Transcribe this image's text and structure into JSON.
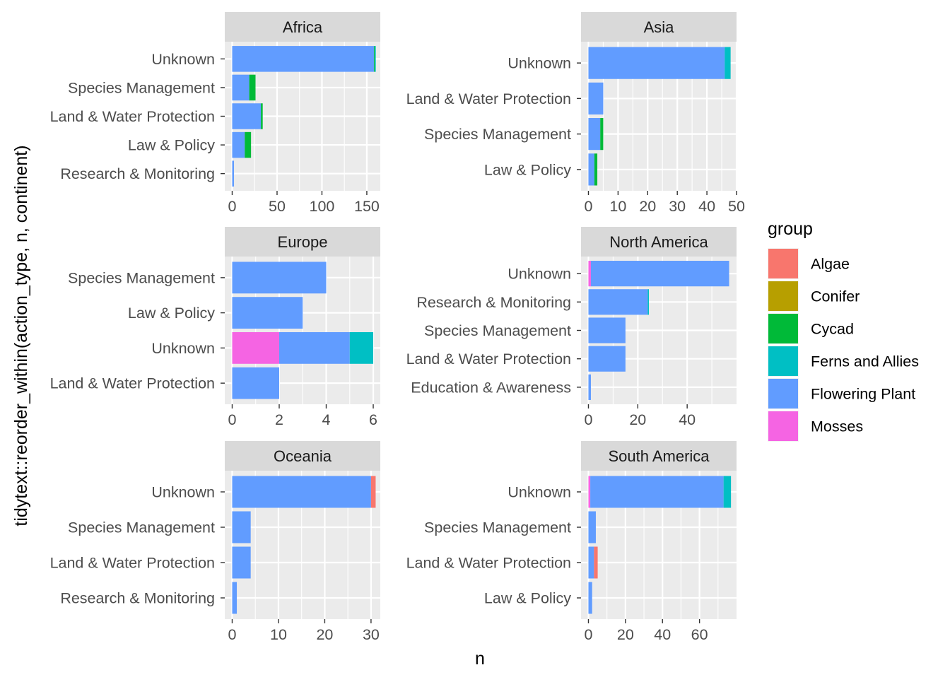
{
  "colors": {
    "Algae": "#F8766D",
    "Conifer": "#B79F00",
    "Cycad": "#00BA38",
    "Ferns and Allies": "#00BFC4",
    "Flowering Plant": "#619CFF",
    "Mosses": "#F564E3"
  },
  "chart_data": {
    "type": "bar",
    "orientation": "horizontal",
    "stacked": true,
    "facet_by": "continent",
    "xlabel": "n",
    "ylabel": "tidytext::reorder_within(action_type, n, continent)",
    "grid": true,
    "legend": {
      "title": "group",
      "position": "right",
      "entries": [
        "Algae",
        "Conifer",
        "Cycad",
        "Ferns and Allies",
        "Flowering Plant",
        "Mosses"
      ]
    },
    "panels": [
      {
        "title": "Africa",
        "xlim": [
          0,
          165
        ],
        "xticks": [
          0,
          50,
          100,
          150
        ],
        "categories": [
          "Unknown",
          "Species Management",
          "Land & Water Protection",
          "Law & Policy",
          "Research & Monitoring"
        ],
        "bars": [
          {
            "category": "Unknown",
            "segments": [
              {
                "group": "Flowering Plant",
                "value": 158
              },
              {
                "group": "Cycad",
                "value": 1
              },
              {
                "group": "Ferns and Allies",
                "value": 1
              }
            ]
          },
          {
            "category": "Species Management",
            "segments": [
              {
                "group": "Flowering Plant",
                "value": 19
              },
              {
                "group": "Cycad",
                "value": 7
              }
            ]
          },
          {
            "category": "Land & Water Protection",
            "segments": [
              {
                "group": "Flowering Plant",
                "value": 32
              },
              {
                "group": "Cycad",
                "value": 2
              }
            ]
          },
          {
            "category": "Law & Policy",
            "segments": [
              {
                "group": "Flowering Plant",
                "value": 14
              },
              {
                "group": "Cycad",
                "value": 7
              }
            ]
          },
          {
            "category": "Research & Monitoring",
            "segments": [
              {
                "group": "Flowering Plant",
                "value": 2
              }
            ]
          }
        ]
      },
      {
        "title": "Asia",
        "xlim": [
          0,
          50
        ],
        "xticks": [
          0,
          10,
          20,
          30,
          40,
          50
        ],
        "categories": [
          "Unknown",
          "Land & Water Protection",
          "Species Management",
          "Law & Policy"
        ],
        "bars": [
          {
            "category": "Unknown",
            "segments": [
              {
                "group": "Flowering Plant",
                "value": 46
              },
              {
                "group": "Ferns and Allies",
                "value": 2
              }
            ]
          },
          {
            "category": "Land & Water Protection",
            "segments": [
              {
                "group": "Flowering Plant",
                "value": 5
              }
            ]
          },
          {
            "category": "Species Management",
            "segments": [
              {
                "group": "Flowering Plant",
                "value": 4
              },
              {
                "group": "Cycad",
                "value": 1
              }
            ]
          },
          {
            "category": "Law & Policy",
            "segments": [
              {
                "group": "Flowering Plant",
                "value": 2
              },
              {
                "group": "Cycad",
                "value": 1
              }
            ]
          }
        ]
      },
      {
        "title": "Europe",
        "xlim": [
          0,
          6.3
        ],
        "xticks": [
          0,
          2,
          4,
          6
        ],
        "categories": [
          "Species Management",
          "Law & Policy",
          "Unknown",
          "Land & Water Protection"
        ],
        "bars": [
          {
            "category": "Species Management",
            "segments": [
              {
                "group": "Flowering Plant",
                "value": 4
              }
            ]
          },
          {
            "category": "Law & Policy",
            "segments": [
              {
                "group": "Flowering Plant",
                "value": 3
              }
            ]
          },
          {
            "category": "Unknown",
            "segments": [
              {
                "group": "Mosses",
                "value": 2
              },
              {
                "group": "Flowering Plant",
                "value": 3
              },
              {
                "group": "Ferns and Allies",
                "value": 1
              }
            ]
          },
          {
            "category": "Land & Water Protection",
            "segments": [
              {
                "group": "Flowering Plant",
                "value": 2
              }
            ]
          }
        ]
      },
      {
        "title": "North America",
        "xlim": [
          0,
          60
        ],
        "xticks": [
          0,
          20,
          40
        ],
        "categories": [
          "Unknown",
          "Research & Monitoring",
          "Species Management",
          "Land & Water Protection",
          "Education & Awareness"
        ],
        "bars": [
          {
            "category": "Unknown",
            "segments": [
              {
                "group": "Mosses",
                "value": 1
              },
              {
                "group": "Flowering Plant",
                "value": 56
              }
            ]
          },
          {
            "category": "Research & Monitoring",
            "segments": [
              {
                "group": "Flowering Plant",
                "value": 24
              },
              {
                "group": "Ferns and Allies",
                "value": 0.5
              }
            ]
          },
          {
            "category": "Species Management",
            "segments": [
              {
                "group": "Flowering Plant",
                "value": 15
              }
            ]
          },
          {
            "category": "Land & Water Protection",
            "segments": [
              {
                "group": "Flowering Plant",
                "value": 15
              }
            ]
          },
          {
            "category": "Education & Awareness",
            "segments": [
              {
                "group": "Flowering Plant",
                "value": 1
              }
            ]
          }
        ]
      },
      {
        "title": "Oceania",
        "xlim": [
          0,
          32
        ],
        "xticks": [
          0,
          10,
          20,
          30
        ],
        "categories": [
          "Unknown",
          "Species Management",
          "Land & Water Protection",
          "Research & Monitoring"
        ],
        "bars": [
          {
            "category": "Unknown",
            "segments": [
              {
                "group": "Flowering Plant",
                "value": 30
              },
              {
                "group": "Algae",
                "value": 1
              }
            ]
          },
          {
            "category": "Species Management",
            "segments": [
              {
                "group": "Flowering Plant",
                "value": 4
              }
            ]
          },
          {
            "category": "Land & Water Protection",
            "segments": [
              {
                "group": "Flowering Plant",
                "value": 4
              }
            ]
          },
          {
            "category": "Research & Monitoring",
            "segments": [
              {
                "group": "Flowering Plant",
                "value": 1
              }
            ]
          }
        ]
      },
      {
        "title": "South America",
        "xlim": [
          0,
          80
        ],
        "xticks": [
          0,
          20,
          40,
          60
        ],
        "categories": [
          "Unknown",
          "Species Management",
          "Land & Water Protection",
          "Law & Policy"
        ],
        "bars": [
          {
            "category": "Unknown",
            "segments": [
              {
                "group": "Mosses",
                "value": 1
              },
              {
                "group": "Flowering Plant",
                "value": 72
              },
              {
                "group": "Ferns and Allies",
                "value": 4
              }
            ]
          },
          {
            "category": "Species Management",
            "segments": [
              {
                "group": "Flowering Plant",
                "value": 4
              }
            ]
          },
          {
            "category": "Land & Water Protection",
            "segments": [
              {
                "group": "Flowering Plant",
                "value": 3
              },
              {
                "group": "Algae",
                "value": 2
              }
            ]
          },
          {
            "category": "Law & Policy",
            "segments": [
              {
                "group": "Flowering Plant",
                "value": 2
              }
            ]
          }
        ]
      }
    ]
  }
}
